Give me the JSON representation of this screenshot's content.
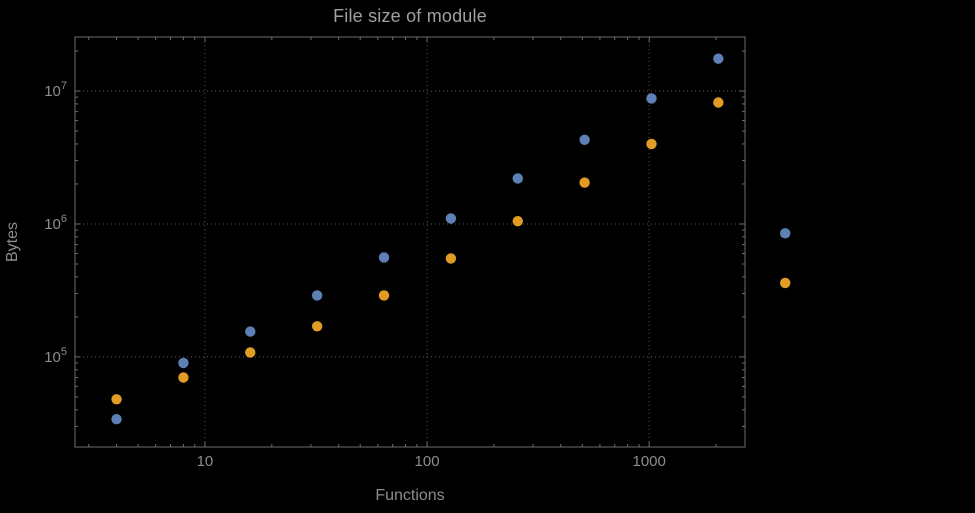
{
  "page": {
    "background": "#000000"
  },
  "chart_data": {
    "type": "scatter",
    "title": "File size of module",
    "xlabel": "Functions",
    "ylabel": "Bytes",
    "x_scale": "log",
    "y_scale": "log",
    "xlim": [
      2.6,
      2700
    ],
    "ylim": [
      21000,
      25500000
    ],
    "x_ticks": [
      10,
      100,
      1000
    ],
    "x_tick_labels": [
      "10",
      "100",
      "1000"
    ],
    "y_tick_exponents": [
      5,
      6,
      7
    ],
    "y_tick_base": "10",
    "grid": "dotted",
    "legend": "none",
    "series": [
      {
        "name": "blue-series",
        "color": "#5e81b5",
        "x": [
          4,
          8,
          16,
          32,
          64,
          128,
          256,
          512,
          1024,
          2048,
          4096
        ],
        "y": [
          34000,
          90000,
          155000,
          290000,
          560000,
          1100000,
          2200000,
          4300000,
          8800000,
          17500000,
          850000
        ]
      },
      {
        "name": "orange-series",
        "color": "#e19c24",
        "x": [
          4,
          8,
          16,
          32,
          64,
          128,
          256,
          512,
          1024,
          2048,
          4096
        ],
        "y": [
          48000,
          70000,
          108000,
          170000,
          290000,
          550000,
          1050000,
          2050000,
          4000000,
          8200000,
          360000
        ]
      }
    ],
    "styles": {
      "frame_color": "#6e6e6e",
      "grid_color": "#5a5a5a",
      "tick_label_color": "#8d8d8d",
      "axis_label_color": "#8d8d8d",
      "title_color": "#a0a0a0",
      "marker_radius": 5.2
    }
  }
}
